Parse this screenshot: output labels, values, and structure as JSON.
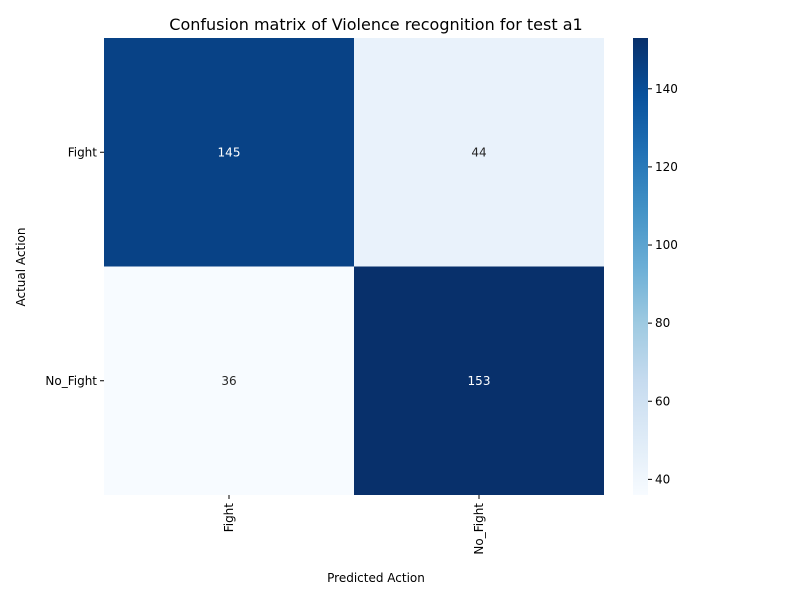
{
  "chart_data": {
    "type": "heatmap",
    "title": "Confusion matrix of Violence recognition for test a1",
    "xlabel": "Predicted Action",
    "ylabel": "Actual Action",
    "x_categories": [
      "Fight",
      "No_Fight"
    ],
    "y_categories": [
      "Fight",
      "No_Fight"
    ],
    "values": [
      [
        145,
        44
      ],
      [
        36,
        153
      ]
    ],
    "colormap": "Blues",
    "colorbar": {
      "range": [
        36,
        153
      ],
      "ticks": [
        40,
        60,
        80,
        100,
        120,
        140
      ]
    },
    "annotated": true,
    "grid": false
  }
}
